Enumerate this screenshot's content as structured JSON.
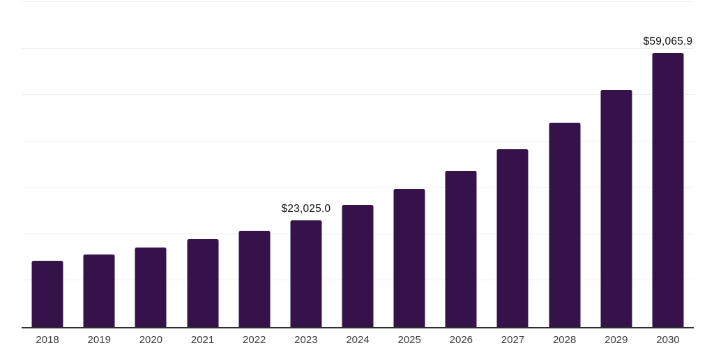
{
  "colors": {
    "background": "#ffffff",
    "bar": "#351249",
    "axis_line": "#2e2e2e",
    "gridline": "#f0f0f0",
    "year_label": "#3c3c3c",
    "value_label": "#0d0d0d"
  },
  "chart_data": {
    "type": "bar",
    "title": "",
    "xlabel": "",
    "ylabel": "",
    "categories": [
      "2018",
      "2019",
      "2020",
      "2021",
      "2022",
      "2023",
      "2024",
      "2025",
      "2026",
      "2027",
      "2028",
      "2029",
      "2030"
    ],
    "values": [
      14300,
      15650,
      17150,
      18900,
      20750,
      23025.0,
      26250,
      29800,
      33700,
      38300,
      44000,
      51100,
      59065.9
    ],
    "value_labels": {
      "2023": "$23,025.0",
      "2030": "$59,065.9"
    },
    "ylim": [
      0,
      70000
    ],
    "gridline_values": [
      10000,
      20000,
      30000,
      40000,
      50000,
      60000,
      70000
    ],
    "grid": "horizontal only, light gray",
    "legend_position": "none",
    "y_axis_ticks_visible": false,
    "notes": "Only 2023 and 2030 bars carry data labels; currency formatted with $ and one decimal"
  }
}
